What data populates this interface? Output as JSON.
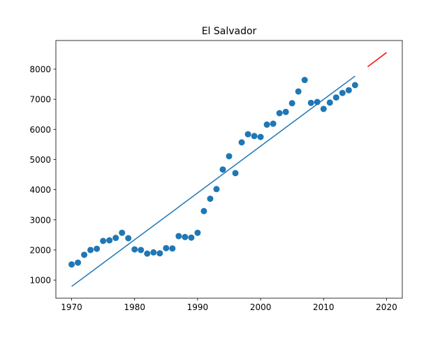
{
  "chart_data": {
    "type": "scatter",
    "title": "El Salvador",
    "xlabel": "",
    "ylabel": "",
    "xlim": [
      1967.5,
      2022.5
    ],
    "ylim": [
      400,
      8950
    ],
    "x_ticks": [
      1970,
      1980,
      1990,
      2000,
      2010,
      2020
    ],
    "y_ticks": [
      1000,
      2000,
      3000,
      4000,
      5000,
      6000,
      7000,
      8000
    ],
    "grid": false,
    "legend": "none",
    "series": [
      {
        "kind": "scatter",
        "color": "#1f77b4",
        "points": [
          [
            1970,
            1520
          ],
          [
            1971,
            1580
          ],
          [
            1972,
            1840
          ],
          [
            1973,
            2000
          ],
          [
            1974,
            2040
          ],
          [
            1975,
            2300
          ],
          [
            1976,
            2320
          ],
          [
            1977,
            2400
          ],
          [
            1978,
            2570
          ],
          [
            1979,
            2390
          ],
          [
            1980,
            2020
          ],
          [
            1981,
            2000
          ],
          [
            1982,
            1880
          ],
          [
            1983,
            1920
          ],
          [
            1984,
            1890
          ],
          [
            1985,
            2060
          ],
          [
            1986,
            2050
          ],
          [
            1987,
            2460
          ],
          [
            1988,
            2430
          ],
          [
            1989,
            2410
          ],
          [
            1990,
            2570
          ],
          [
            1991,
            3290
          ],
          [
            1992,
            3700
          ],
          [
            1993,
            4020
          ],
          [
            1994,
            4670
          ],
          [
            1995,
            5110
          ],
          [
            1996,
            4550
          ],
          [
            1997,
            5570
          ],
          [
            1998,
            5840
          ],
          [
            1999,
            5780
          ],
          [
            2000,
            5750
          ],
          [
            2001,
            6160
          ],
          [
            2002,
            6190
          ],
          [
            2003,
            6540
          ],
          [
            2004,
            6580
          ],
          [
            2005,
            6870
          ],
          [
            2006,
            7260
          ],
          [
            2007,
            7640
          ],
          [
            2008,
            6880
          ],
          [
            2009,
            6910
          ],
          [
            2010,
            6680
          ],
          [
            2011,
            6890
          ],
          [
            2012,
            7060
          ],
          [
            2013,
            7210
          ],
          [
            2014,
            7300
          ],
          [
            2015,
            7470
          ]
        ]
      },
      {
        "kind": "line",
        "color": "#1f77b4",
        "points": [
          [
            1970,
            790
          ],
          [
            2015,
            7770
          ]
        ]
      },
      {
        "kind": "line",
        "color": "#ff0000",
        "points": [
          [
            2017,
            8080
          ],
          [
            2020,
            8550
          ]
        ]
      }
    ]
  }
}
